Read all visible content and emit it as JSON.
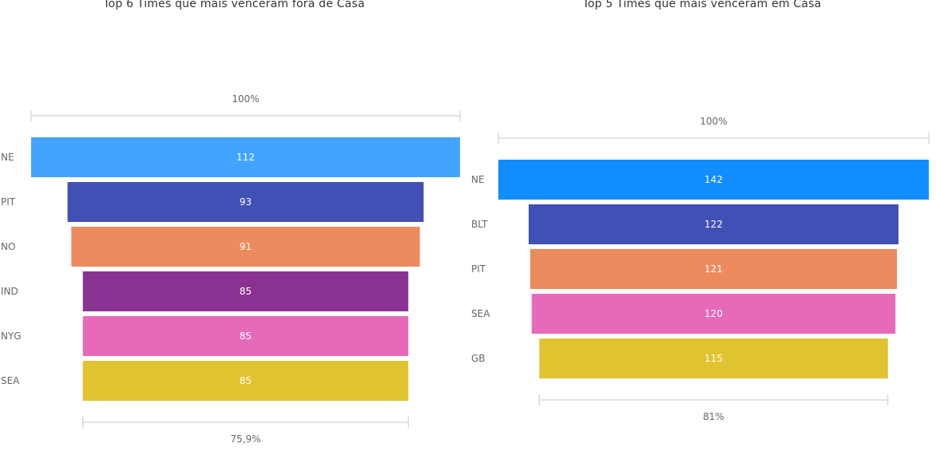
{
  "chart_data": [
    {
      "type": "funnel",
      "title": "Top 6 Times que mais venceram fora de Casa",
      "categories": [
        "NE",
        "PIT",
        "NO",
        "IND",
        "NYG",
        "SEA"
      ],
      "values": [
        112,
        93,
        91,
        85,
        85,
        85
      ],
      "colors": [
        "#41A4FF",
        "#4150B4",
        "#EC8B5E",
        "#8A3291",
        "#E66AB9",
        "#E0C330"
      ],
      "top_percent_label": "100%",
      "bottom_percent_label": "75,9%"
    },
    {
      "type": "funnel",
      "title": "Top 5 Times que mais venceram em Casa",
      "categories": [
        "NE",
        "BLT",
        "PIT",
        "SEA",
        "GB"
      ],
      "values": [
        142,
        122,
        121,
        120,
        115
      ],
      "colors": [
        "#118DFF",
        "#4150B4",
        "#EC8B5E",
        "#E66AB9",
        "#E0C330"
      ],
      "top_percent_label": "100%",
      "bottom_percent_label": "81%"
    }
  ]
}
